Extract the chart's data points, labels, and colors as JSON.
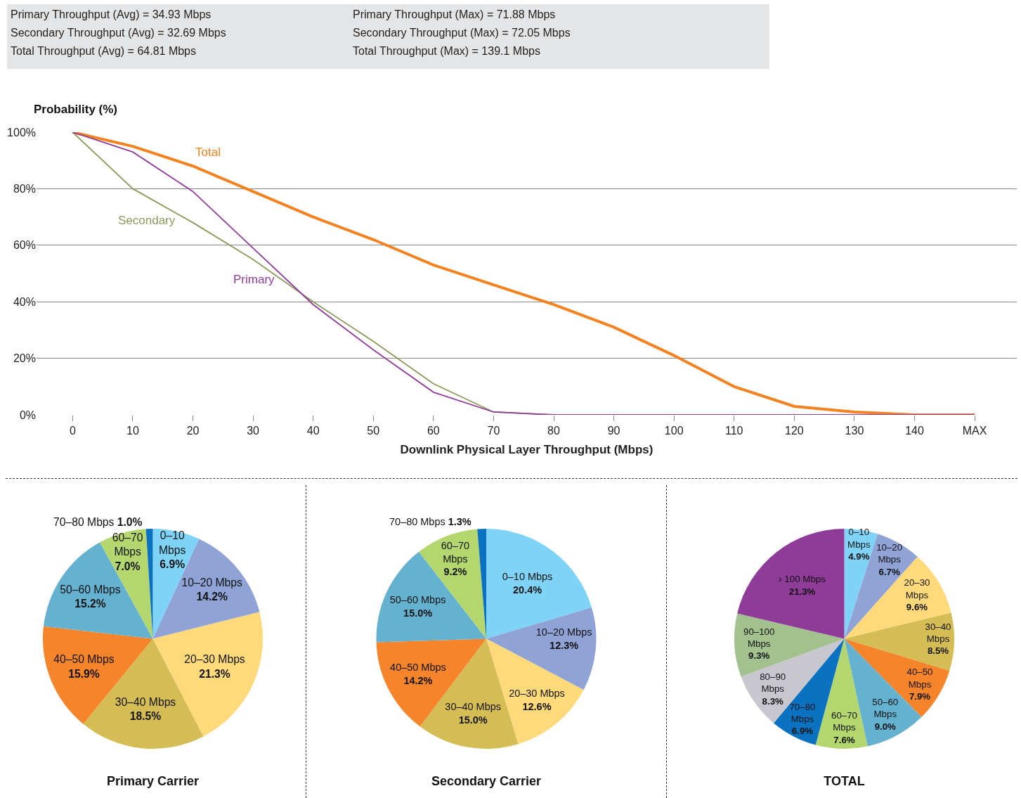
{
  "chart_data": [
    {
      "type": "other",
      "annotations": [
        "Primary Throughput (Avg) = 34.93 Mbps",
        "Secondary Throughput (Avg) = 32.69 Mbps",
        "Total Throughput (Avg) = 64.81 Mbps",
        "Primary Throughput (Max) = 71.88 Mbps",
        "Secondary Throughput (Max) = 72.05 Mbps",
        "Total Throughput (Max) = 139.1 Mbps"
      ]
    },
    {
      "type": "line",
      "ylabel": "Probability (%)",
      "xlabel": "Downlink Physical Layer Throughput (Mbps)",
      "x": [
        0,
        10,
        20,
        30,
        40,
        50,
        60,
        70,
        80,
        90,
        100,
        110,
        120,
        130,
        140,
        150
      ],
      "series": [
        {
          "name": "Total",
          "color": "#f58220",
          "values": [
            100,
            95,
            88,
            79,
            70,
            62,
            53,
            46,
            39,
            31,
            21,
            10,
            3,
            1,
            0,
            0
          ]
        },
        {
          "name": "Secondary",
          "color": "#8a9a5b",
          "values": [
            100,
            80,
            68,
            55,
            40,
            26,
            11,
            1,
            0,
            0,
            null,
            null,
            null,
            null,
            null,
            null
          ]
        },
        {
          "name": "Primary",
          "color": "#8e3c97",
          "values": [
            100,
            93,
            79,
            59,
            39,
            23,
            8,
            1,
            0,
            0,
            0,
            0,
            0,
            0,
            0,
            0
          ]
        }
      ],
      "xlim": [
        -6,
        157
      ],
      "xticks": [
        0,
        10,
        20,
        30,
        40,
        50,
        60,
        70,
        80,
        90,
        100,
        110,
        120,
        130,
        140,
        {
          "value": 150,
          "label": "MAX"
        }
      ],
      "ylim": [
        0,
        100
      ],
      "yticks": [
        {
          "value": 0,
          "label": "0%"
        },
        {
          "value": 20,
          "label": "20%"
        },
        {
          "value": 40,
          "label": "40%"
        },
        {
          "value": 60,
          "label": "60%"
        },
        {
          "value": 80,
          "label": "80%"
        },
        {
          "value": 100,
          "label": "100%"
        }
      ],
      "grid": "y",
      "legend": false,
      "marker": "none",
      "line_style": "solid"
    },
    {
      "type": "pie",
      "title": "Primary Carrier",
      "categories": [
        "0–10 Mbps",
        "10–20 Mbps",
        "20–30 Mbps",
        "30–40 Mbps",
        "40–50 Mbps",
        "50–60 Mbps",
        "60–70 Mbps",
        "70–80 Mbps"
      ],
      "values": [
        6.9,
        14.2,
        21.3,
        18.5,
        15.9,
        15.2,
        7.0,
        1.0
      ],
      "value_labels": [
        "6.9%",
        "14.2%",
        "21.3%",
        "18.5%",
        "15.9%",
        "15.2%",
        "7.0%",
        "1.0%"
      ],
      "colors": [
        "#7fd3f7",
        "#8fa3d6",
        "#ffd97a",
        "#d4bd55",
        "#f5842a",
        "#65b1d0",
        "#b3d66e",
        "#0a72c0"
      ]
    },
    {
      "type": "pie",
      "title": "Secondary Carrier",
      "categories": [
        "0–10 Mbps",
        "10–20 Mbps",
        "20–30 Mbps",
        "30–40 Mbps",
        "40–50 Mbps",
        "50–60 Mbps",
        "60–70 Mbps",
        "70–80 Mbps"
      ],
      "values": [
        20.4,
        12.3,
        12.6,
        15.0,
        14.2,
        15.0,
        9.2,
        1.3
      ],
      "value_labels": [
        "20.4%",
        "12.3%",
        "12.6%",
        "15.0%",
        "14.2%",
        "15.0%",
        "9.2%",
        "1.3%"
      ],
      "colors": [
        "#7fd3f7",
        "#8fa3d6",
        "#ffd97a",
        "#d4bd55",
        "#f5842a",
        "#65b1d0",
        "#b3d66e",
        "#0a72c0"
      ]
    },
    {
      "type": "pie",
      "title": "TOTAL",
      "categories": [
        "0–10 Mbps",
        "10–20 Mbps",
        "20–30 Mbps",
        "30–40 Mbps",
        "40–50 Mbps",
        "50–60 Mbps",
        "60–70 Mbps",
        "70–80 Mbps",
        "80–90 Mbps",
        "90–100 Mbps",
        "› 100 Mbps"
      ],
      "values": [
        4.9,
        6.7,
        9.6,
        8.5,
        7.9,
        9.0,
        7.6,
        6.9,
        8.3,
        9.3,
        21.3
      ],
      "value_labels": [
        "4.9%",
        "6.7%",
        "9.6%",
        "8.5%",
        "7.9%",
        "9.0%",
        "7.6%",
        "6.9%",
        "8.3%",
        "9.3%",
        "21.3%"
      ],
      "colors": [
        "#7fd3f7",
        "#8fa3d6",
        "#ffd97a",
        "#d4bd55",
        "#f5842a",
        "#65b1d0",
        "#b3d66e",
        "#0a72c0",
        "#c8c6cf",
        "#a3c08f",
        "#8e3c97"
      ]
    }
  ]
}
